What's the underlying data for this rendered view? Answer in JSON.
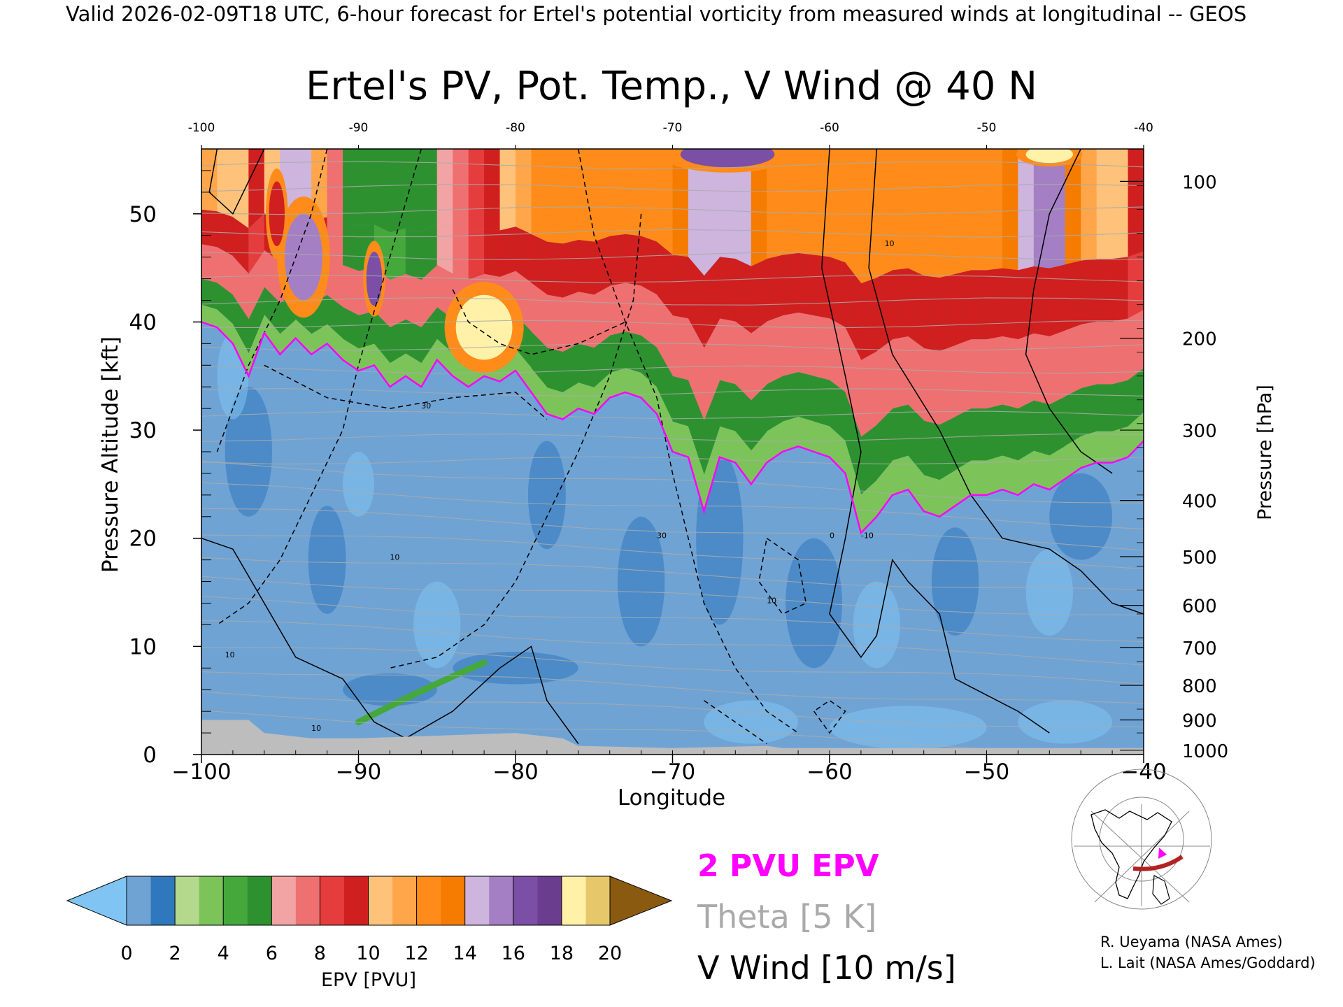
{
  "header": {
    "caption": "Valid 2026-02-09T18 UTC, 6-hour forecast for Ertel's potential vorticity from measured winds at longitudinal -- GEOS"
  },
  "chart_data": {
    "type": "heatmap",
    "title": "Ertel's PV, Pot. Temp., V Wind @ 40 N",
    "xlabel": "Longitude",
    "ylabel_left": "Pressure Altitude [kft]",
    "ylabel_right": "Pressure [hPa]",
    "xlim": [
      -100,
      -40
    ],
    "ylim_kft": [
      0,
      56
    ],
    "x_ticks": [
      "-100",
      "-90",
      "-80",
      "-70",
      "-60",
      "-50",
      "-40"
    ],
    "x_ticks_top": [
      "-100",
      "-90",
      "-80",
      "-70",
      "-60",
      "-50",
      "-40"
    ],
    "y_ticks_left": [
      "0",
      "10",
      "20",
      "30",
      "40",
      "50"
    ],
    "y_ticks_right": [
      {
        "label": "100",
        "kft": 53.0
      },
      {
        "label": "200",
        "kft": 38.5
      },
      {
        "label": "300",
        "kft": 30.0
      },
      {
        "label": "400",
        "kft": 23.5
      },
      {
        "label": "500",
        "kft": 18.3
      },
      {
        "label": "600",
        "kft": 13.8
      },
      {
        "label": "700",
        "kft": 9.9
      },
      {
        "label": "800",
        "kft": 6.4
      },
      {
        "label": "900",
        "kft": 3.2
      },
      {
        "label": "1000",
        "kft": 0.4
      }
    ],
    "colorbar": {
      "label": "EPV [PVU]",
      "ticks": [
        "0",
        "2",
        "4",
        "6",
        "8",
        "10",
        "12",
        "14",
        "16",
        "18",
        "20"
      ],
      "bins": [
        {
          "from": 0,
          "to": 1,
          "color": "#6fa3d4"
        },
        {
          "from": 1,
          "to": 2,
          "color": "#2f78bd"
        },
        {
          "from": 2,
          "to": 3,
          "color": "#b4d98c"
        },
        {
          "from": 3,
          "to": 4,
          "color": "#7cc45a"
        },
        {
          "from": 4,
          "to": 5,
          "color": "#45a83a"
        },
        {
          "from": 5,
          "to": 6,
          "color": "#2e9130"
        },
        {
          "from": 6,
          "to": 7,
          "color": "#f2a3a3"
        },
        {
          "from": 7,
          "to": 8,
          "color": "#ef7070"
        },
        {
          "from": 8,
          "to": 9,
          "color": "#e53d3d"
        },
        {
          "from": 9,
          "to": 10,
          "color": "#d01f1f"
        },
        {
          "from": 10,
          "to": 11,
          "color": "#ffc27a"
        },
        {
          "from": 11,
          "to": 12,
          "color": "#ffa64a"
        },
        {
          "from": 12,
          "to": 13,
          "color": "#ff8c1a"
        },
        {
          "from": 13,
          "to": 14,
          "color": "#f57c00"
        },
        {
          "from": 14,
          "to": 15,
          "color": "#cdb5de"
        },
        {
          "from": 15,
          "to": 16,
          "color": "#a47fc4"
        },
        {
          "from": 16,
          "to": 17,
          "color": "#7b4fa6"
        },
        {
          "from": 17,
          "to": 18,
          "color": "#6a3d8f"
        },
        {
          "from": 18,
          "to": 19,
          "color": "#fff2a8"
        },
        {
          "from": 19,
          "to": 20,
          "color": "#e6c86a"
        }
      ],
      "under_color": "#7fc4f2",
      "over_color": "#8a5a10"
    },
    "pv_2pvu_boundary": [
      {
        "lon": -100,
        "kft": 40.0
      },
      {
        "lon": -99,
        "kft": 39.5
      },
      {
        "lon": -98,
        "kft": 38.0
      },
      {
        "lon": -97,
        "kft": 35.0
      },
      {
        "lon": -96,
        "kft": 39.0
      },
      {
        "lon": -95,
        "kft": 37.0
      },
      {
        "lon": -94,
        "kft": 38.5
      },
      {
        "lon": -93,
        "kft": 37.0
      },
      {
        "lon": -92,
        "kft": 38.0
      },
      {
        "lon": -91,
        "kft": 36.5
      },
      {
        "lon": -90,
        "kft": 35.5
      },
      {
        "lon": -89,
        "kft": 36.0
      },
      {
        "lon": -88,
        "kft": 34.0
      },
      {
        "lon": -87,
        "kft": 35.0
      },
      {
        "lon": -86,
        "kft": 34.0
      },
      {
        "lon": -85,
        "kft": 36.5
      },
      {
        "lon": -84,
        "kft": 35.0
      },
      {
        "lon": -83,
        "kft": 34.0
      },
      {
        "lon": -82,
        "kft": 35.0
      },
      {
        "lon": -81,
        "kft": 34.5
      },
      {
        "lon": -80,
        "kft": 35.5
      },
      {
        "lon": -79,
        "kft": 33.5
      },
      {
        "lon": -78,
        "kft": 31.5
      },
      {
        "lon": -77,
        "kft": 31.0
      },
      {
        "lon": -76,
        "kft": 32.0
      },
      {
        "lon": -75,
        "kft": 31.5
      },
      {
        "lon": -74,
        "kft": 33.0
      },
      {
        "lon": -73,
        "kft": 33.5
      },
      {
        "lon": -72,
        "kft": 33.0
      },
      {
        "lon": -71,
        "kft": 31.5
      },
      {
        "lon": -70,
        "kft": 28.0
      },
      {
        "lon": -69,
        "kft": 27.5
      },
      {
        "lon": -68,
        "kft": 22.5
      },
      {
        "lon": -67,
        "kft": 27.5
      },
      {
        "lon": -66,
        "kft": 27.0
      },
      {
        "lon": -65,
        "kft": 25.0
      },
      {
        "lon": -64,
        "kft": 27.0
      },
      {
        "lon": -63,
        "kft": 28.0
      },
      {
        "lon": -62,
        "kft": 28.5
      },
      {
        "lon": -61,
        "kft": 28.0
      },
      {
        "lon": -60,
        "kft": 27.5
      },
      {
        "lon": -59,
        "kft": 26.0
      },
      {
        "lon": -58,
        "kft": 20.5
      },
      {
        "lon": -57,
        "kft": 22.0
      },
      {
        "lon": -56,
        "kft": 24.0
      },
      {
        "lon": -55,
        "kft": 24.5
      },
      {
        "lon": -54,
        "kft": 22.5
      },
      {
        "lon": -53,
        "kft": 22.0
      },
      {
        "lon": -52,
        "kft": 23.0
      },
      {
        "lon": -51,
        "kft": 24.0
      },
      {
        "lon": -50,
        "kft": 24.0
      },
      {
        "lon": -49,
        "kft": 24.5
      },
      {
        "lon": -48,
        "kft": 24.0
      },
      {
        "lon": -47,
        "kft": 25.0
      },
      {
        "lon": -46,
        "kft": 24.5
      },
      {
        "lon": -45,
        "kft": 25.5
      },
      {
        "lon": -44,
        "kft": 26.5
      },
      {
        "lon": -43,
        "kft": 27.0
      },
      {
        "lon": -42,
        "kft": 27.0
      },
      {
        "lon": -41,
        "kft": 27.5
      },
      {
        "lon": -40,
        "kft": 29.0
      }
    ],
    "top_band_pvu": [
      {
        "lon": -100,
        "pvu": 12
      },
      {
        "lon": -96,
        "pvu": 9
      },
      {
        "lon": -94,
        "pvu": 16
      },
      {
        "lon": -91,
        "pvu": 6
      },
      {
        "lon": -88,
        "pvu": 5
      },
      {
        "lon": -85,
        "pvu": 6
      },
      {
        "lon": -82,
        "pvu": 9
      },
      {
        "lon": -79,
        "pvu": 12
      },
      {
        "lon": -75,
        "pvu": 12
      },
      {
        "lon": -70,
        "pvu": 13
      },
      {
        "lon": -67,
        "pvu": 15
      },
      {
        "lon": -64,
        "pvu": 13
      },
      {
        "lon": -60,
        "pvu": 12
      },
      {
        "lon": -55,
        "pvu": 13
      },
      {
        "lon": -50,
        "pvu": 12
      },
      {
        "lon": -46,
        "pvu": 16
      },
      {
        "lon": -43,
        "pvu": 11
      },
      {
        "lon": -40,
        "pvu": 9
      }
    ],
    "v_wind_contour_labels": [
      "10",
      "30",
      "0",
      "-10"
    ],
    "legend": {
      "pv_label": "2 PVU EPV",
      "pv_color": "#ff00ff",
      "theta_label": "Theta [5 K]",
      "theta_color": "#aaaaaa",
      "wind_label": "V Wind [10 m/s]",
      "wind_color": "#000000"
    }
  },
  "credits": {
    "line1": "R. Ueyama (NASA Ames)",
    "line2": "L. Lait (NASA Ames/Goddard)"
  },
  "inset_map": {
    "icon": "globe-map-icon",
    "track_color": "#b22222",
    "point_color": "#ff00ff"
  }
}
